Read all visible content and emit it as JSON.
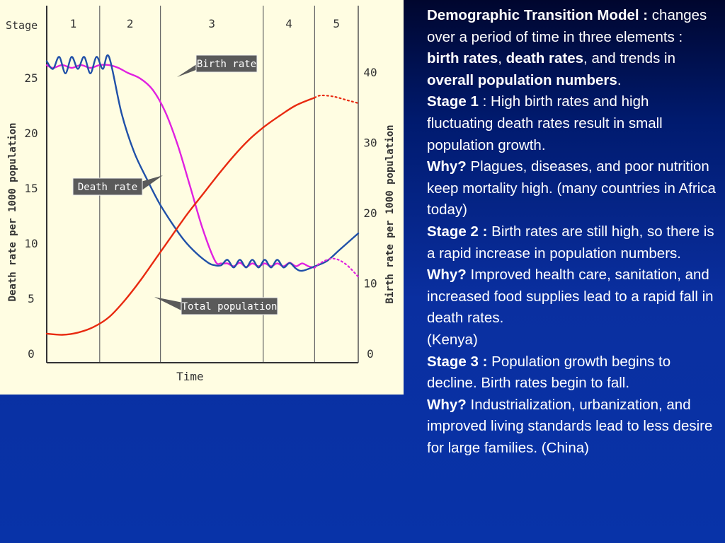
{
  "chart_data": {
    "type": "line",
    "stage_axis_label": "Stage",
    "stages": [
      "1",
      "2",
      "3",
      "4",
      "5"
    ],
    "xlabel": "Time",
    "ylabel_left": "Death rate per 1000 population",
    "ylabel_right": "Birth rate per 1000 population",
    "yticks_left": [
      "0",
      "5",
      "10",
      "15",
      "20",
      "25"
    ],
    "yticks_right": [
      "0",
      "10",
      "20",
      "30",
      "40"
    ],
    "ylim_left": [
      0,
      27
    ],
    "ylim_right": [
      0,
      43
    ],
    "xlim": [
      0,
      100
    ],
    "stage_boundaries": [
      17,
      36.5,
      69.5,
      86
    ],
    "series": [
      {
        "name": "Birth rate",
        "axis": "right",
        "color": "#e020e0",
        "x": [
          0,
          2,
          5,
          8,
          11,
          14,
          17,
          20,
          23,
          26,
          30,
          34,
          38,
          42,
          46,
          50,
          54,
          56,
          58,
          60,
          62,
          64,
          66,
          68,
          70,
          72,
          74,
          76,
          78,
          80,
          82,
          84,
          86
        ],
        "y": [
          41,
          40.6,
          41,
          40.6,
          41,
          40.6,
          41,
          41,
          40.6,
          39.9,
          39.1,
          37.5,
          34.4,
          29.7,
          23.8,
          17.8,
          13.2,
          12.8,
          12.8,
          12.4,
          12.9,
          12.3,
          12.8,
          12.4,
          12.8,
          12.4,
          12.8,
          12.4,
          12.9,
          12.4,
          12.8,
          12.4,
          12.2
        ]
      },
      {
        "name": "Death rate",
        "axis": "left",
        "color": "#2050a8",
        "x": [
          0,
          2,
          4,
          6,
          8,
          10,
          12,
          14,
          16,
          18,
          20,
          24,
          28,
          32,
          36,
          40,
          44,
          48,
          52,
          54,
          56,
          58,
          60,
          62,
          64,
          66,
          68,
          70,
          72,
          74,
          76,
          78,
          80,
          82,
          86,
          90,
          94,
          100
        ],
        "y": [
          26.5,
          25.8,
          26.9,
          25.4,
          26.9,
          25.8,
          26.9,
          25.4,
          26.9,
          25.8,
          26.9,
          21.8,
          18.3,
          15.9,
          13.7,
          11.9,
          10.3,
          9.1,
          8.2,
          8.0,
          8.0,
          8.5,
          7.8,
          8.5,
          7.8,
          8.5,
          7.8,
          8.5,
          7.8,
          8.5,
          7.8,
          8.2,
          7.7,
          7.5,
          7.9,
          8.4,
          9.4,
          10.9
        ]
      },
      {
        "name": "Total population",
        "axis": "left",
        "color": "#e82a10",
        "x": [
          0,
          5,
          10,
          15,
          20,
          25,
          30,
          35,
          40,
          45,
          50,
          55,
          60,
          65,
          70,
          75,
          80,
          86
        ],
        "y": [
          1.8,
          1.7,
          1.9,
          2.4,
          3.3,
          4.8,
          6.6,
          8.6,
          10.6,
          12.6,
          14.4,
          16.2,
          17.9,
          19.4,
          20.6,
          21.6,
          22.5,
          23.2
        ]
      }
    ],
    "projections": [
      {
        "series": "Total population",
        "x": [
          86,
          88,
          92,
          96,
          100
        ],
        "y": [
          23.2,
          23.4,
          23.3,
          23.0,
          22.7
        ]
      },
      {
        "series": "Birth rate",
        "x": [
          86,
          88,
          92,
          96,
          100
        ],
        "y": [
          12.2,
          12.9,
          13.5,
          12.7,
          10.9
        ]
      }
    ]
  },
  "annotations": {
    "birth_rate": "Birth rate",
    "death_rate": "Death rate",
    "total_population": "Total population"
  },
  "text": {
    "title": "Demographic Transition Model :",
    "intro_1": " changes over a period of time in three elements : ",
    "birth_rates": "birth rates",
    "comma": ", ",
    "death_rates": "death rates",
    "intro_2": ", and trends in ",
    "overall": "overall population numbers",
    "period": ".",
    "stage1_label": "Stage 1",
    "stage1_text": " : High birth rates and high fluctuating death rates result in small population growth.",
    "why1_label": "Why?",
    "why1_text": " Plagues, diseases, and poor nutrition keep mortality high. (many countries in Africa today)",
    "stage2_label": "Stage 2 :",
    "stage2_text": " Birth rates are still high, so there is a rapid increase in population numbers.",
    "why2_label": "Why?",
    "why2_text": " Improved health care, sanitation, and increased food supplies lead to a rapid fall in death rates.",
    "kenya": "(Kenya)",
    "stage3_label": "Stage 3 :",
    "stage3_text": " Population growth begins to decline.  Birth rates begin to fall.",
    "why3_label": "Why?",
    "why3_text": " Industrialization, urbanization, and improved living standards lead to less desire for large families. (China)"
  }
}
